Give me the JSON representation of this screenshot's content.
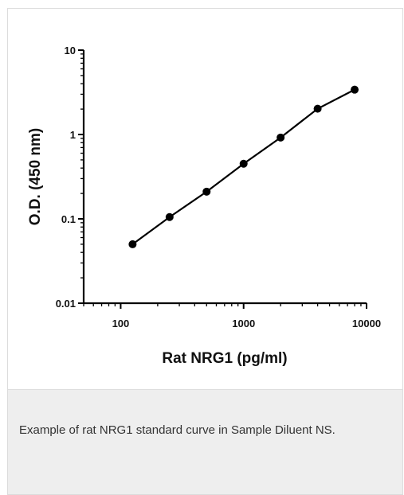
{
  "chart_data": {
    "type": "line",
    "x_scale": "log",
    "y_scale": "log",
    "xlim": [
      50,
      10000
    ],
    "ylim": [
      0.01,
      10
    ],
    "xlabel": "Rat NRG1 (pg/ml)",
    "ylabel": "O.D. (450 nm)",
    "x_tick_labels": [
      "100",
      "1000",
      "10000"
    ],
    "x_ticks": [
      100,
      1000,
      10000
    ],
    "y_tick_labels": [
      "0.01",
      "0.1",
      "1",
      "10"
    ],
    "y_ticks": [
      0.01,
      0.1,
      1,
      10
    ],
    "grid": false,
    "series": [
      {
        "x": [
          125,
          250,
          500,
          1000,
          2000,
          4000,
          8000
        ],
        "y": [
          0.05,
          0.105,
          0.21,
          0.45,
          0.92,
          2.02,
          3.4
        ]
      }
    ],
    "color": "#000000"
  },
  "caption": "Example of rat NRG1 standard curve in Sample Diluent NS."
}
